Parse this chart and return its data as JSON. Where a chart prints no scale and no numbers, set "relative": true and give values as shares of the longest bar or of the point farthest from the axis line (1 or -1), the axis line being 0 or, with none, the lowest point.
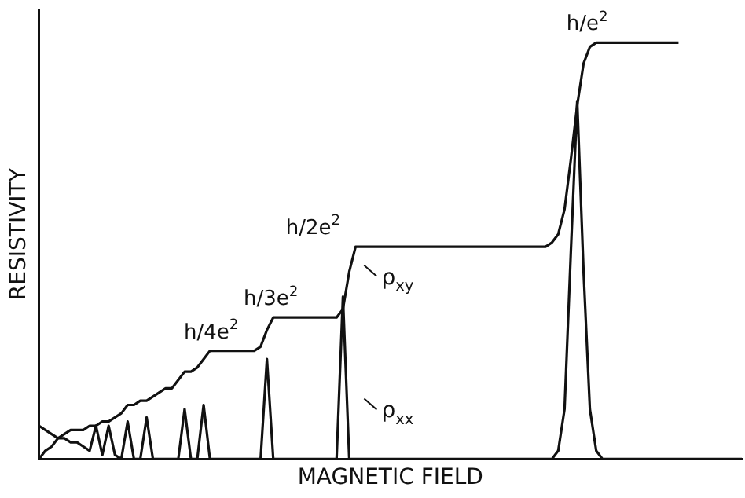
{
  "chart_data": {
    "type": "line",
    "relative": true,
    "xlabel": "MAGNETIC FIELD",
    "ylabel": "RESISTIVITY",
    "grid": false,
    "legend": "center",
    "tick_labels": false,
    "marker": "none",
    "line_style": "solid",
    "categories": [
      null,
      null,
      null,
      null,
      null,
      null,
      null,
      null,
      null,
      null,
      null,
      null,
      null,
      null,
      null,
      null,
      null,
      null,
      null,
      null,
      null,
      null,
      null,
      null,
      null,
      null,
      null,
      null,
      null,
      null,
      null,
      null,
      null,
      null,
      null,
      null,
      null,
      null,
      null,
      null,
      null,
      null,
      null,
      null,
      null,
      null,
      null,
      null,
      null,
      null,
      null,
      null,
      null,
      null,
      null,
      null,
      null,
      null,
      null,
      null,
      null,
      null,
      null,
      null,
      null,
      null,
      null,
      null,
      null,
      null,
      null,
      null,
      null,
      null,
      null,
      null,
      null,
      null,
      null,
      null,
      null,
      null,
      null,
      null,
      null,
      null,
      null,
      null,
      null,
      null,
      null,
      null,
      null,
      null,
      null,
      null,
      null,
      null,
      null,
      null,
      null,
      null,
      null,
      null,
      null,
      null,
      null,
      null,
      null,
      null,
      null,
      null
    ],
    "series": [
      {
        "name": "ρ$_{xy}$",
        "color": "#111111",
        "values": [
          0,
          0.02,
          0.03,
          0.05,
          0.06,
          0.07,
          0.07,
          0.07,
          0.08,
          0.08,
          0.09,
          0.09,
          0.1,
          0.11,
          0.13,
          0.13,
          0.14,
          0.14,
          0.15,
          0.16,
          0.17,
          0.17,
          0.19,
          0.21,
          0.21,
          0.22,
          0.24,
          0.26,
          0.26,
          0.26,
          0.26,
          0.26,
          0.26,
          0.26,
          0.26,
          0.27,
          0.31,
          0.34,
          0.34,
          0.34,
          0.34,
          0.34,
          0.34,
          0.34,
          0.34,
          0.34,
          0.34,
          0.34,
          0.36,
          0.45,
          0.51,
          0.51,
          0.51,
          0.51,
          0.51,
          0.51,
          0.51,
          0.51,
          0.51,
          0.51,
          0.51,
          0.51,
          0.51,
          0.51,
          0.51,
          0.51,
          0.51,
          0.51,
          0.51,
          0.51,
          0.51,
          0.51,
          0.51,
          0.51,
          0.51,
          0.51,
          0.51,
          0.51,
          0.51,
          0.51,
          0.51,
          0.52,
          0.54,
          0.6,
          0.72,
          0.85,
          0.95,
          0.99,
          1.0,
          1.0,
          1.0,
          1.0,
          1.0,
          1.0,
          1.0,
          1.0,
          1.0,
          1.0,
          1.0,
          1.0,
          1.0,
          1.0,
          null,
          null,
          null,
          null,
          null,
          null,
          null,
          null,
          null,
          null
        ]
      },
      {
        "name": "ρ$_{xx}$",
        "color": "#111111",
        "values": [
          0.08,
          0.07,
          0.06,
          0.05,
          0.05,
          0.04,
          0.04,
          0.03,
          0.02,
          0.08,
          0.01,
          0.08,
          0.01,
          0,
          0.09,
          0,
          0,
          0.1,
          0,
          0,
          0,
          0,
          0,
          0.12,
          0,
          0,
          0.13,
          0,
          0,
          0,
          0,
          0,
          0,
          0,
          0,
          0,
          0.24,
          0,
          0,
          0,
          0,
          0,
          0,
          0,
          0,
          0,
          0,
          0,
          0.39,
          0,
          0,
          0,
          0,
          0,
          0,
          0,
          0,
          0,
          0,
          0,
          0,
          0,
          0,
          0,
          0,
          0,
          0,
          0,
          0,
          0,
          0,
          0,
          0,
          0,
          0,
          0,
          0,
          0,
          0,
          0,
          0,
          0,
          0.02,
          0.12,
          0.5,
          0.86,
          0.45,
          0.12,
          0.02,
          0,
          0,
          0,
          0,
          0,
          0,
          0,
          0,
          0,
          0,
          0,
          0,
          0,
          0,
          0,
          0,
          0,
          0,
          0,
          0,
          0,
          0,
          0
        ]
      }
    ],
    "annotations": [
      "h/e$^{2}$",
      "h/2e$^{2}$",
      "h/3e$^{2}$",
      "h/4e$^{2}$"
    ]
  }
}
